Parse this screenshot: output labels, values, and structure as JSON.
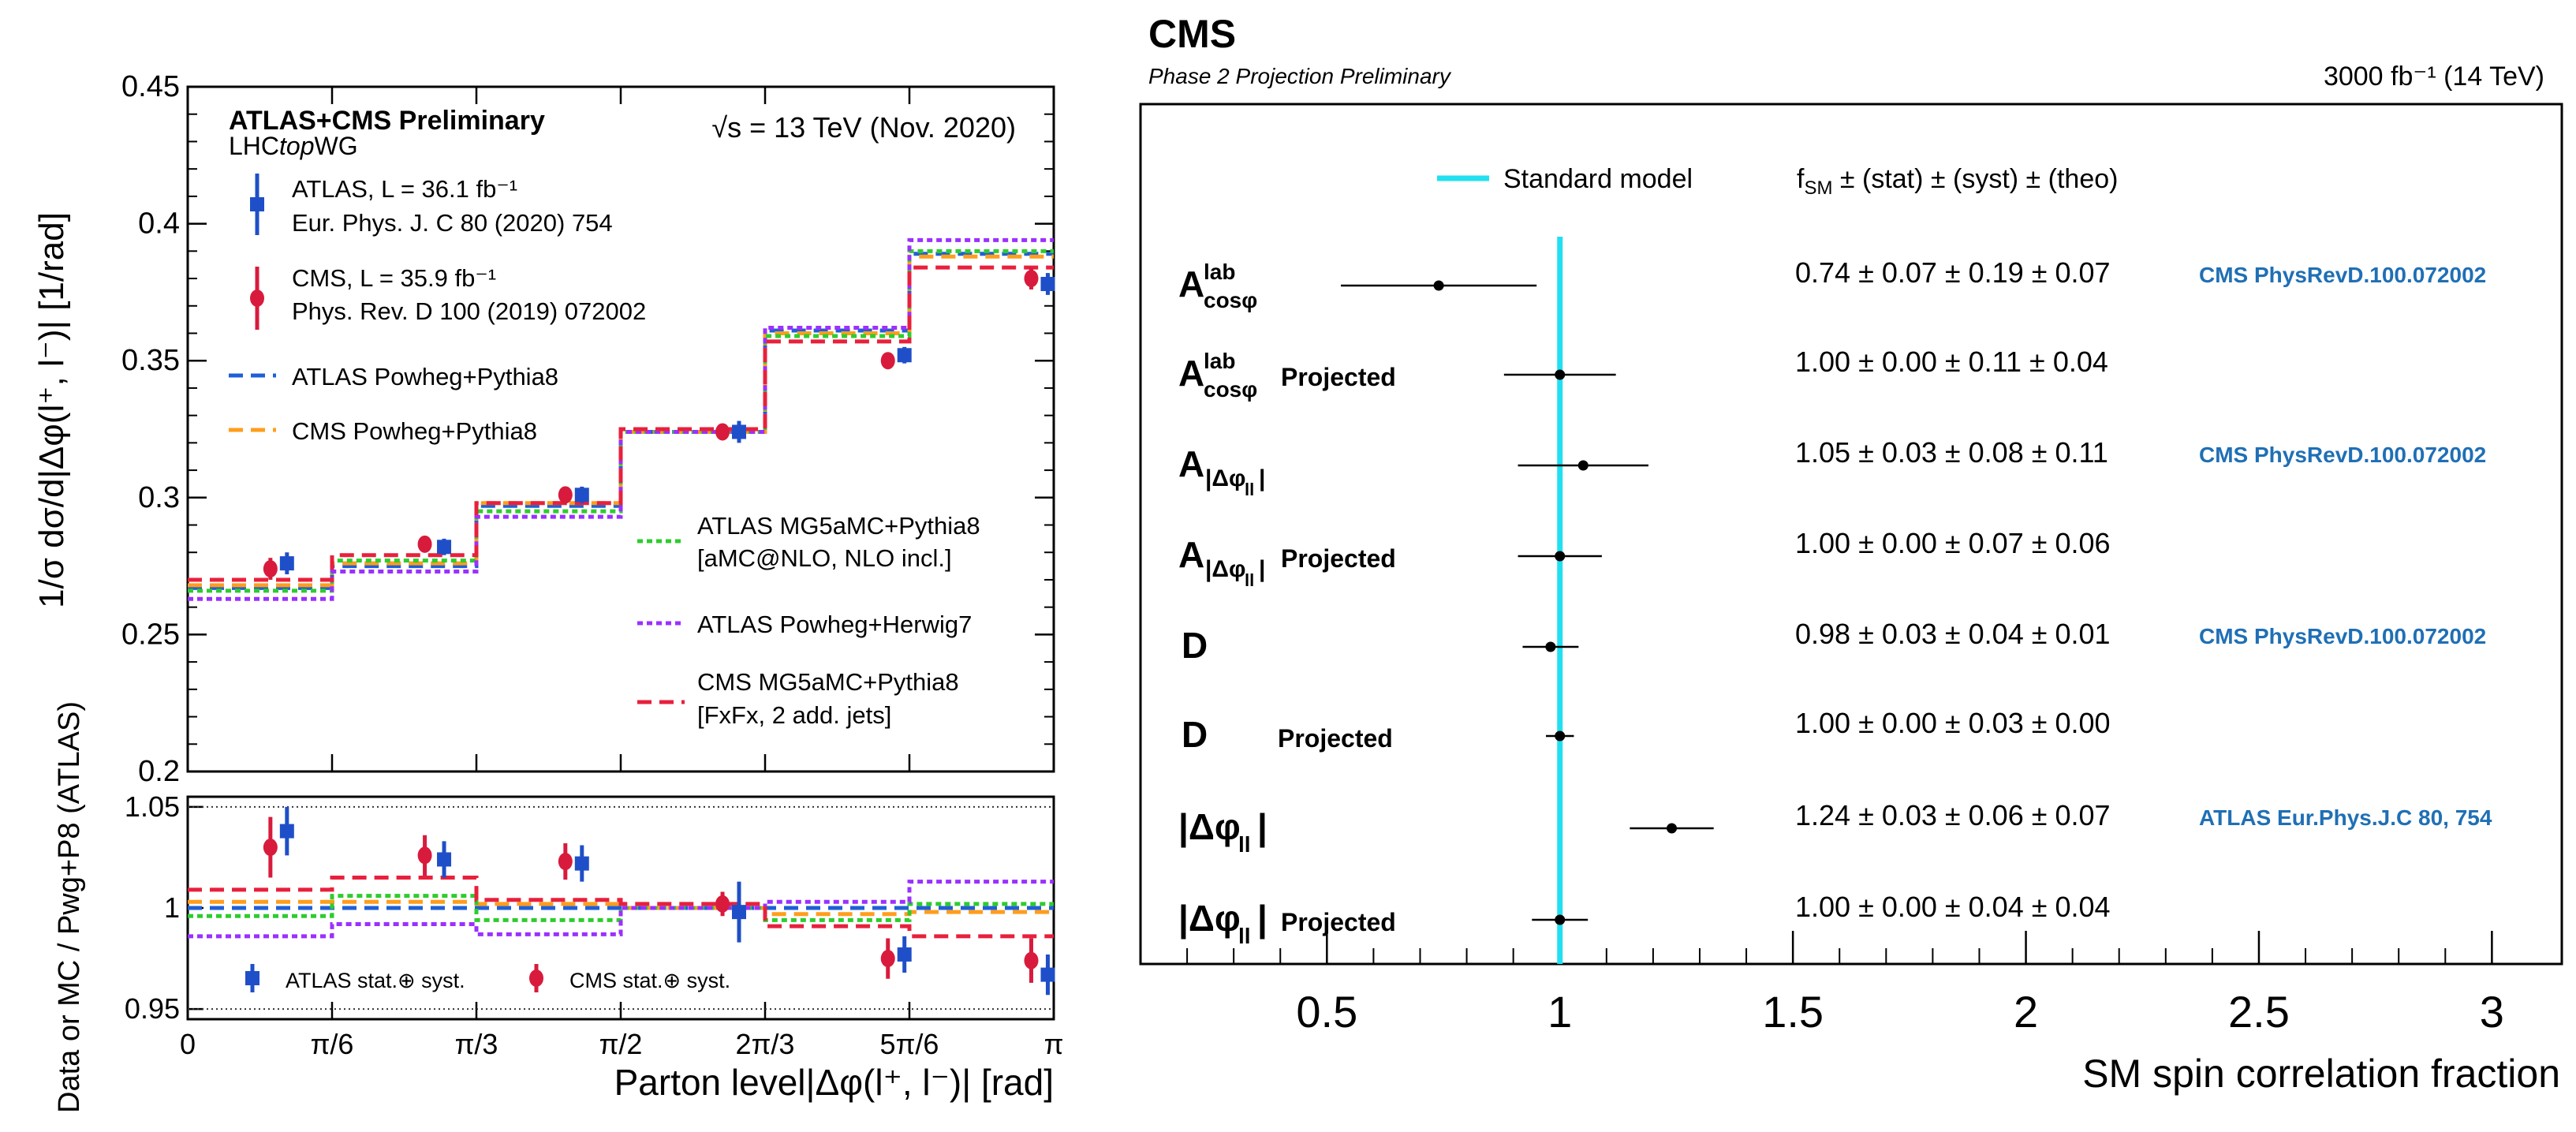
{
  "chart_data": [
    {
      "type": "step-with-errorbars",
      "title": "ATLAS+CMS Preliminary",
      "subtitle_prefix": "LHC",
      "subtitle_italic": "top",
      "subtitle_suffix": "WG",
      "energy_label": "√s = 13 TeV (Nov. 2020)",
      "xlabel": "Parton level|Δφ(l⁺, l⁻)| [rad]",
      "ylabel_main": "1/σ dσ/d|Δφ(l⁺, l⁻)| [1/rad]",
      "ylabel_ratio": "Data or MC / Pwg+P8 (ATLAS)",
      "xlim": [
        0,
        3.14159
      ],
      "ylim": [
        0.2,
        0.45
      ],
      "ratio_ylim": [
        0.945,
        1.055
      ],
      "xtick_labels": [
        "0",
        "π/6",
        "π/3",
        "π/2",
        "2π/3",
        "5π/6",
        "π"
      ],
      "ytick_labels": [
        "0.2",
        "0.25",
        "0.3",
        "0.35",
        "0.4",
        "0.45"
      ],
      "ratio_ytick_labels": [
        "0.95",
        "1",
        "1.05"
      ],
      "bin_edges": [
        0,
        0.5236,
        1.0472,
        1.5708,
        2.0944,
        2.618,
        3.14159
      ],
      "legend": {
        "atlas_data": [
          "ATLAS, L = 36.1 fb⁻¹",
          "Eur. Phys. J. C 80 (2020) 754"
        ],
        "cms_data": [
          "CMS, L = 35.9 fb⁻¹",
          "Phys. Rev. D 100 (2019) 072002"
        ],
        "atlas_powheg": "ATLAS Powheg+Pythia8",
        "cms_powheg": "CMS Powheg+Pythia8",
        "atlas_mg5": [
          "ATLAS MG5aMC+Pythia8",
          "[aMC@NLO, NLO incl.]"
        ],
        "atlas_herwig": "ATLAS Powheg+Herwig7",
        "cms_mg5": [
          "CMS MG5aMC+Pythia8",
          "[FxFx, 2 add. jets]"
        ],
        "ratio_atlas": "ATLAS stat.⊕ syst.",
        "ratio_cms": "CMS stat.⊕ syst."
      },
      "series": [
        {
          "name": "ATLAS Powheg+Pythia8",
          "color": "#1f5fd6",
          "style": "dash",
          "values": [
            0.267,
            0.275,
            0.297,
            0.324,
            0.361,
            0.389
          ]
        },
        {
          "name": "CMS Powheg+Pythia8",
          "color": "#ff9d1c",
          "style": "dash",
          "values": [
            0.268,
            0.276,
            0.298,
            0.324,
            0.36,
            0.388
          ]
        },
        {
          "name": "ATLAS MG5aMC+Pythia8",
          "color": "#2ecc2e",
          "style": "dot",
          "values": [
            0.266,
            0.277,
            0.295,
            0.324,
            0.359,
            0.39
          ]
        },
        {
          "name": "ATLAS Powheg+Herwig7",
          "color": "#9b30ff",
          "style": "dot",
          "values": [
            0.263,
            0.273,
            0.293,
            0.324,
            0.362,
            0.394
          ]
        },
        {
          "name": "CMS MG5aMC+Pythia8",
          "color": "#e8203c",
          "style": "dash",
          "values": [
            0.27,
            0.279,
            0.298,
            0.325,
            0.357,
            0.384
          ]
        }
      ],
      "data_points": [
        {
          "name": "ATLAS data",
          "color": "#1f4fc8",
          "marker": "square",
          "x": [
            0.36,
            0.93,
            1.43,
            2.0,
            2.6,
            3.12
          ],
          "y": [
            0.276,
            0.282,
            0.301,
            0.324,
            0.352,
            0.378
          ],
          "yerr": [
            0.004,
            0.003,
            0.003,
            0.004,
            0.003,
            0.004
          ]
        },
        {
          "name": "CMS data",
          "color": "#d81b3c",
          "marker": "circle",
          "x": [
            0.3,
            0.86,
            1.37,
            1.94,
            2.54,
            3.06
          ],
          "y": [
            0.274,
            0.283,
            0.301,
            0.324,
            0.35,
            0.38
          ],
          "yerr": [
            0.004,
            0.003,
            0.003,
            0.002,
            0.003,
            0.004
          ]
        }
      ],
      "ratio_series": [
        {
          "name": "ATLAS Powheg+Pythia8",
          "color": "#1f5fd6",
          "style": "dash",
          "values": [
            1.0,
            1.0,
            1.0,
            1.0,
            1.0,
            1.0
          ]
        },
        {
          "name": "CMS Powheg+Pythia8",
          "color": "#ff9d1c",
          "style": "dash",
          "values": [
            1.003,
            1.003,
            1.002,
            1.0,
            0.997,
            0.998
          ]
        },
        {
          "name": "ATLAS MG5aMC+Pythia8",
          "color": "#2ecc2e",
          "style": "dot",
          "values": [
            0.996,
            1.006,
            0.994,
            1.0,
            0.994,
            1.002
          ]
        },
        {
          "name": "ATLAS Powheg+Herwig7",
          "color": "#9b30ff",
          "style": "dot",
          "values": [
            0.986,
            0.992,
            0.987,
            1.0,
            1.003,
            1.013
          ]
        },
        {
          "name": "CMS MG5aMC+Pythia8",
          "color": "#e8203c",
          "style": "dash",
          "values": [
            1.009,
            1.015,
            1.004,
            1.002,
            0.991,
            0.986
          ]
        }
      ],
      "ratio_points": [
        {
          "name": "ATLAS data",
          "color": "#1f4fc8",
          "marker": "square",
          "x": [
            0.36,
            0.93,
            1.43,
            2.0,
            2.6,
            3.12
          ],
          "y": [
            1.038,
            1.024,
            1.022,
            0.998,
            0.977,
            0.967
          ],
          "yerr": [
            0.012,
            0.009,
            0.009,
            0.015,
            0.009,
            0.01
          ]
        },
        {
          "name": "CMS data",
          "color": "#d81b3c",
          "marker": "circle",
          "x": [
            0.3,
            0.86,
            1.37,
            1.94,
            2.54,
            3.06
          ],
          "y": [
            1.03,
            1.026,
            1.023,
            1.002,
            0.975,
            0.974
          ],
          "yerr": [
            0.015,
            0.01,
            0.009,
            0.006,
            0.01,
            0.011
          ]
        }
      ]
    },
    {
      "type": "forest",
      "title": "CMS",
      "subtitle": "Phase 2 Projection Preliminary",
      "lumi_label": "3000 fb⁻¹ (14 TeV)",
      "xlabel": "SM spin correlation fraction",
      "xlim": [
        0.1,
        3.15
      ],
      "xtick_labels": [
        "0.5",
        "1",
        "1.5",
        "2",
        "2.5",
        "3"
      ],
      "reference_line": {
        "x": 1.0,
        "label": "Standard model",
        "color": "#22e0f0"
      },
      "column_header": "f_SM ± (stat) ± (syst) ± (theo)",
      "rows": [
        {
          "observable": "A_cosφ^lab",
          "tag": "",
          "value": 0.74,
          "err_low": 0.21,
          "err_high": 0.21,
          "text": "0.74 ± 0.07 ± 0.19 ± 0.07",
          "reference": "CMS PhysRevD.100.072002"
        },
        {
          "observable": "A_cosφ^lab",
          "tag": "Projected",
          "value": 1.0,
          "err_low": 0.12,
          "err_high": 0.12,
          "text": "1.00 ± 0.00 ± 0.11 ± 0.04",
          "reference": ""
        },
        {
          "observable": "A_|Δφll|",
          "tag": "",
          "value": 1.05,
          "err_low": 0.14,
          "err_high": 0.14,
          "text": "1.05 ± 0.03 ± 0.08 ± 0.11",
          "reference": "CMS PhysRevD.100.072002"
        },
        {
          "observable": "A_|Δφll|",
          "tag": "Projected",
          "value": 1.0,
          "err_low": 0.09,
          "err_high": 0.09,
          "text": "1.00 ± 0.00 ± 0.07 ± 0.06",
          "reference": ""
        },
        {
          "observable": "D",
          "tag": "",
          "value": 0.98,
          "err_low": 0.06,
          "err_high": 0.06,
          "text": "0.98 ± 0.03 ± 0.04 ± 0.01",
          "reference": "CMS PhysRevD.100.072002"
        },
        {
          "observable": "D",
          "tag": "Projected",
          "value": 1.0,
          "err_low": 0.03,
          "err_high": 0.03,
          "text": "1.00 ± 0.00 ± 0.03 ± 0.00",
          "reference": ""
        },
        {
          "observable": "|Δφll|",
          "tag": "",
          "value": 1.24,
          "err_low": 0.09,
          "err_high": 0.09,
          "text": "1.24 ± 0.03 ± 0.06 ± 0.07",
          "reference": "ATLAS Eur.Phys.J.C 80, 754"
        },
        {
          "observable": "|Δφll|",
          "tag": "Projected",
          "value": 1.0,
          "err_low": 0.06,
          "err_high": 0.06,
          "text": "1.00 ± 0.00 ± 0.04 ± 0.04",
          "reference": ""
        }
      ]
    }
  ]
}
